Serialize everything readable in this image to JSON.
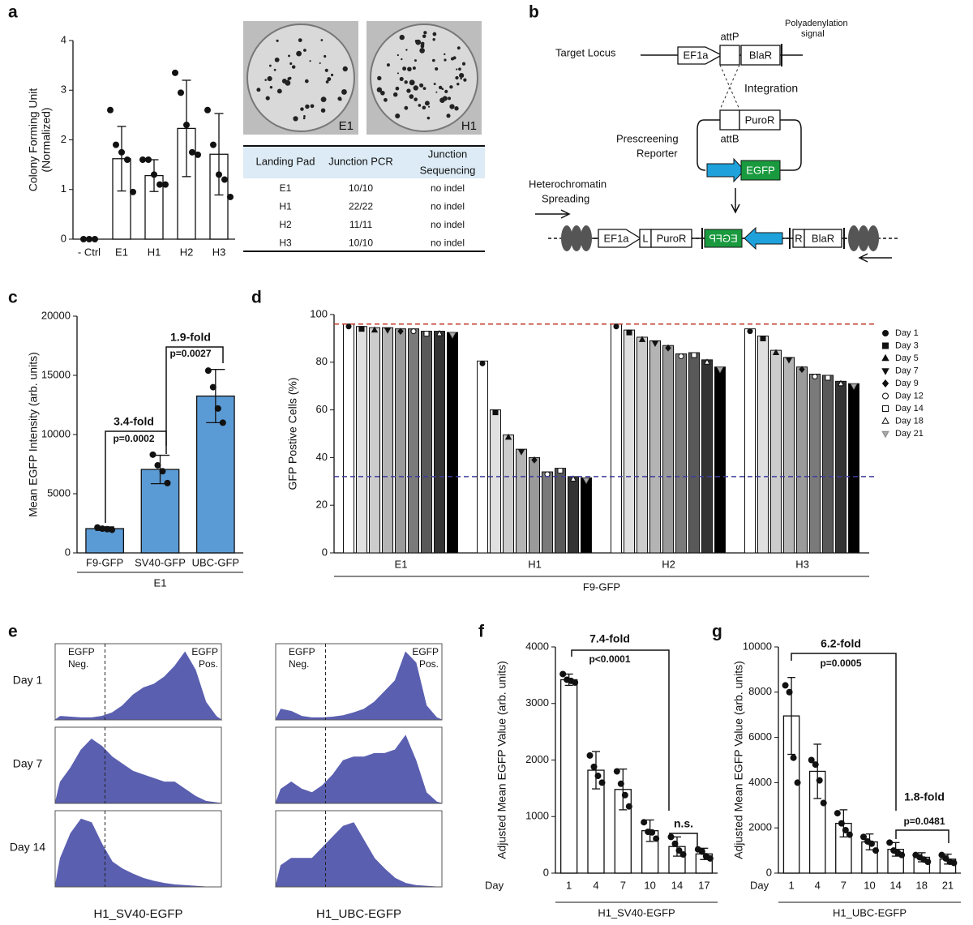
{
  "panels": [
    "a",
    "b",
    "c",
    "d",
    "e",
    "f",
    "g"
  ],
  "chart_data": [
    {
      "type": "bar",
      "ylabel": [
        "Colony Forming Unit",
        "(Normalized)"
      ],
      "categories": [
        "- Ctrl",
        "E1",
        "H1",
        "H2",
        "H3"
      ],
      "values": [
        0,
        1.62,
        1.28,
        2.23,
        1.71
      ],
      "errors": [
        0,
        0.65,
        0.32,
        0.97,
        0.82
      ],
      "points": [
        [
          0,
          0,
          0
        ],
        [
          2.6,
          1.9,
          1.75,
          1.6,
          0.95
        ],
        [
          1.6,
          1.6,
          1.3,
          1.1,
          1.1
        ],
        [
          3.35,
          2.95,
          2.3,
          1.75,
          1.7
        ],
        [
          2.6,
          1.9,
          1.3,
          1.2,
          0.85
        ]
      ],
      "color": "#ffffff",
      "ylim": [
        0,
        4
      ],
      "yticks": [
        0,
        1,
        2,
        3,
        4
      ]
    },
    {
      "type": "bar",
      "ylabel": "Mean EGFP Intensity (arb. units)",
      "categories": [
        "F9-GFP",
        "SV40-GFP",
        "UBC-GFP"
      ],
      "values": [
        2050,
        7050,
        13250
      ],
      "errors": [
        150,
        1200,
        2250
      ],
      "points": [
        [
          2150,
          2050,
          2000,
          1950
        ],
        [
          8300,
          7400,
          6900,
          5900
        ],
        [
          15400,
          14000,
          12200,
          11000
        ]
      ],
      "color": "#5b9bd5",
      "ylim": [
        0,
        20000
      ],
      "yticks": [
        0,
        5000,
        10000,
        15000,
        20000
      ],
      "annotations": [
        "3.4-fold",
        "p=0.0002",
        "1.9-fold",
        "p=0.0027"
      ],
      "group_label": "E1"
    },
    {
      "type": "grouped_bar",
      "ylabel": "GFP Postive Cells (%)",
      "categories": [
        "E1",
        "H1",
        "H2",
        "H3"
      ],
      "series": [
        {
          "name": "Day 1",
          "color": "#ffffff",
          "marker": "circle",
          "values": [
            96,
            80.5,
            96,
            94
          ]
        },
        {
          "name": "Day 3",
          "color": "#e0e0e0",
          "marker": "square",
          "values": [
            95,
            60,
            93.5,
            91
          ]
        },
        {
          "name": "Day 5",
          "color": "#cccccc",
          "marker": "triangle",
          "values": [
            94.5,
            49.5,
            90.5,
            85
          ]
        },
        {
          "name": "Day 7",
          "color": "#b4b4b4",
          "marker": "triangle-down",
          "values": [
            94.5,
            43.5,
            89,
            82
          ]
        },
        {
          "name": "Day 9",
          "color": "#9a9a9a",
          "marker": "diamond",
          "values": [
            94,
            40,
            87,
            78
          ]
        },
        {
          "name": "Day 12",
          "color": "#7a7a7a",
          "marker": "circle-open",
          "values": [
            94,
            34,
            83.5,
            75
          ]
        },
        {
          "name": "Day 14",
          "color": "#595959",
          "marker": "square-open",
          "values": [
            93,
            35.5,
            84,
            74.5
          ]
        },
        {
          "name": "Day 18",
          "color": "#333333",
          "marker": "triangle-open",
          "values": [
            93,
            32,
            81,
            72
          ]
        },
        {
          "name": "Day 21",
          "color": "#000000",
          "marker": "triangle-down-open",
          "values": [
            92.5,
            31.5,
            78,
            71
          ]
        }
      ],
      "ref_lines": [
        {
          "value": 96,
          "color": "#c0392b"
        },
        {
          "value": 32,
          "color": "#3d3d9e"
        }
      ],
      "ylim": [
        0,
        100
      ],
      "yticks": [
        0,
        20,
        40,
        60,
        80,
        100
      ],
      "group_label": "F9-GFP"
    },
    {
      "type": "bar",
      "ylabel": "Adjusted Mean EGFP Value (arb. units)",
      "x_prefix": "Day",
      "categories": [
        "1",
        "4",
        "7",
        "10",
        "14",
        "17"
      ],
      "values": [
        3420,
        1820,
        1480,
        750,
        470,
        340
      ],
      "errors": [
        100,
        330,
        360,
        190,
        170,
        100
      ],
      "points": [
        [
          3520,
          3420,
          3400,
          3370
        ],
        [
          2080,
          1880,
          1720,
          1600
        ],
        [
          1800,
          1580,
          1380,
          1180
        ],
        [
          900,
          730,
          720,
          610
        ],
        [
          640,
          520,
          400,
          330
        ],
        [
          420,
          380,
          300,
          260
        ]
      ],
      "color": "#ffffff",
      "ylim": [
        0,
        4000
      ],
      "yticks": [
        0,
        1000,
        2000,
        3000,
        4000
      ],
      "annotations": [
        "7.4-fold",
        "p<0.0001",
        "n.s."
      ],
      "group_label": "H1_SV40-EGFP"
    },
    {
      "type": "bar",
      "ylabel": "Adjusted Mean EGFP Value (arb. units)",
      "x_prefix": "Day",
      "categories": [
        "1",
        "4",
        "7",
        "10",
        "14",
        "18",
        "21"
      ],
      "values": [
        6950,
        4500,
        2200,
        1380,
        1050,
        700,
        620
      ],
      "errors": [
        1700,
        1200,
        600,
        350,
        300,
        200,
        220
      ],
      "points": [
        [
          8300,
          8000,
          5100,
          4000
        ],
        [
          5000,
          4800,
          4100,
          3100
        ],
        [
          2650,
          2200,
          1900,
          1700
        ],
        [
          1600,
          1400,
          1300,
          1000
        ],
        [
          1350,
          1000,
          900,
          800
        ],
        [
          800,
          700,
          600,
          500
        ],
        [
          800,
          650,
          500,
          450
        ]
      ],
      "color": "#ffffff",
      "ylim": [
        0,
        10000
      ],
      "yticks": [
        0,
        2000,
        4000,
        6000,
        8000,
        10000
      ],
      "annotations": [
        "6.2-fold",
        "p=0.0005",
        "1.8-fold",
        "p=0.0481"
      ],
      "group_label": "H1_UBC-EGFP"
    },
    {
      "type": "area",
      "color": "#5a5fb0",
      "ylim": [
        0,
        1
      ],
      "values": [
        0.05,
        0.04,
        0.03,
        0.03,
        0.05,
        0.1,
        0.2,
        0.35,
        0.45,
        0.5,
        0.6,
        0.75,
        0.95,
        0.7,
        0.25,
        0.05
      ]
    },
    {
      "type": "area",
      "color": "#5a5fb0",
      "ylim": [
        0,
        1
      ],
      "values": [
        0.3,
        0.5,
        0.75,
        0.9,
        0.8,
        0.65,
        0.55,
        0.45,
        0.4,
        0.35,
        0.3,
        0.3,
        0.2,
        0.1,
        0.03,
        0.01
      ]
    },
    {
      "type": "area",
      "color": "#5a5fb0",
      "ylim": [
        0,
        1
      ],
      "values": [
        0.4,
        0.75,
        0.95,
        0.9,
        0.6,
        0.35,
        0.25,
        0.18,
        0.12,
        0.08,
        0.05,
        0.03,
        0.02,
        0.01,
        0,
        0
      ]
    },
    {
      "type": "area",
      "color": "#5a5fb0",
      "ylim": [
        0,
        1
      ],
      "values": [
        0.15,
        0.12,
        0.05,
        0.03,
        0.03,
        0.04,
        0.06,
        0.1,
        0.15,
        0.25,
        0.4,
        0.55,
        0.95,
        0.8,
        0.2,
        0.03
      ]
    },
    {
      "type": "area",
      "color": "#5a5fb0",
      "ylim": [
        0,
        1
      ],
      "values": [
        0.2,
        0.3,
        0.2,
        0.15,
        0.25,
        0.4,
        0.6,
        0.65,
        0.65,
        0.7,
        0.7,
        0.75,
        0.95,
        0.6,
        0.15,
        0.02
      ]
    },
    {
      "type": "area",
      "color": "#5a5fb0",
      "ylim": [
        0,
        1
      ],
      "values": [
        0.3,
        0.4,
        0.4,
        0.4,
        0.55,
        0.7,
        0.85,
        0.9,
        0.65,
        0.4,
        0.25,
        0.12,
        0.05,
        0.02,
        0.01,
        0
      ]
    }
  ],
  "photo_labels": [
    "E1",
    "H1"
  ],
  "table": {
    "header": [
      "Landing Pad",
      "Junction PCR",
      [
        "Junction",
        "Sequencing"
      ]
    ],
    "rows": [
      [
        "E1",
        "10/10",
        "no indel"
      ],
      [
        "H1",
        "22/22",
        "no indel"
      ],
      [
        "H2",
        "11/11",
        "no indel"
      ],
      [
        "H3",
        "10/10",
        "no indel"
      ]
    ]
  },
  "diagram": {
    "target_locus": "Target Locus",
    "ef1a": "EF1a",
    "attp": "attP",
    "blar": "BlaR",
    "polya": [
      "Polyadenylation",
      "signal"
    ],
    "integration": "Integration",
    "puror": "PuroR",
    "attb": "attB",
    "reporter": [
      "Prescreening",
      "Reporter"
    ],
    "egfp": "EGFP",
    "spreading": [
      "Heterochromatin",
      "Spreading"
    ],
    "l": "L",
    "r": "R"
  },
  "flow": {
    "row_labels": [
      "Day 1",
      "Day 7",
      "Day 14"
    ],
    "gates": [
      [
        "EGFP",
        "Neg."
      ],
      [
        "EGFP",
        "Pos."
      ]
    ],
    "column_labels": [
      "H1_SV40-EGFP",
      "H1_UBC-EGFP"
    ]
  }
}
